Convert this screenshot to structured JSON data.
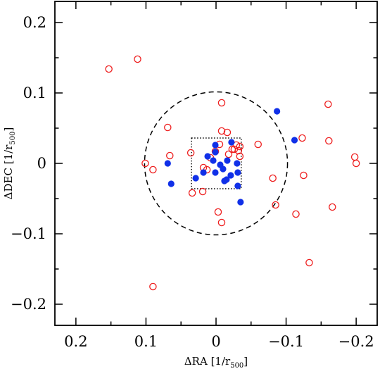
{
  "chart_data": {
    "type": "scatter",
    "xlabel": "ΔRA [1/r",
    "ylabel": "ΔDEC [1/r",
    "label_subscript": "500",
    "label_suffix": "]",
    "xlim": [
      0.23,
      -0.23
    ],
    "ylim": [
      -0.23,
      0.23
    ],
    "x_inverted": true,
    "x_ticks": [
      0.2,
      0.1,
      0,
      -0.1,
      -0.2
    ],
    "x_tick_labels": [
      "0.2",
      "0.1",
      "0",
      "−0.1",
      "−0.2"
    ],
    "y_ticks": [
      0.2,
      0.1,
      0,
      -0.1,
      -0.2
    ],
    "y_tick_labels": [
      "0.2",
      "0.1",
      "0",
      "−0.1",
      "−0.2"
    ],
    "grid": false,
    "colors": {
      "open": "#ee2020",
      "filled": "#1030e8",
      "axis": "#000000"
    },
    "circle": {
      "center": [
        0,
        0
      ],
      "radius": 0.102,
      "style": "dashed"
    },
    "box": {
      "x": [
        0.035,
        -0.036
      ],
      "y": [
        -0.036,
        0.036
      ],
      "style": "dotted"
    },
    "series": [
      {
        "marker": "open-circle",
        "points": [
          [
            0.153,
            0.134
          ],
          [
            0.112,
            0.148
          ],
          [
            0.101,
            0.0
          ],
          [
            0.09,
            -0.009
          ],
          [
            0.09,
            -0.175
          ],
          [
            0.069,
            0.051
          ],
          [
            0.066,
            0.011
          ],
          [
            0.036,
            0.015
          ],
          [
            0.034,
            -0.042
          ],
          [
            0.019,
            -0.04
          ],
          [
            0.018,
            -0.006
          ],
          [
            0.013,
            -0.009
          ],
          [
            0.008,
            0.008
          ],
          [
            -0.008,
            0.086
          ],
          [
            -0.008,
            0.046
          ],
          [
            -0.005,
            0.027
          ],
          [
            0.001,
            0.017
          ],
          [
            -0.003,
            -0.069
          ],
          [
            -0.008,
            -0.084
          ],
          [
            -0.016,
            0.044
          ],
          [
            -0.018,
            0.013
          ],
          [
            -0.023,
            0.02
          ],
          [
            -0.026,
            0.02
          ],
          [
            -0.029,
            0.026
          ],
          [
            -0.032,
            0.018
          ],
          [
            -0.034,
            0.01
          ],
          [
            -0.034,
            0.024
          ],
          [
            -0.06,
            0.027
          ],
          [
            -0.081,
            -0.021
          ],
          [
            -0.085,
            -0.059
          ],
          [
            -0.114,
            -0.072
          ],
          [
            -0.123,
            0.036
          ],
          [
            -0.125,
            -0.017
          ],
          [
            -0.133,
            -0.141
          ],
          [
            -0.16,
            0.084
          ],
          [
            -0.161,
            0.032
          ],
          [
            -0.166,
            -0.062
          ],
          [
            -0.198,
            0.009
          ],
          [
            -0.2,
            0.0
          ]
        ]
      },
      {
        "marker": "filled-circle",
        "points": [
          [
            0.069,
            0.0
          ],
          [
            0.064,
            -0.029
          ],
          [
            0.029,
            -0.021
          ],
          [
            0.018,
            -0.013
          ],
          [
            0.012,
            0.01
          ],
          [
            0.004,
            0.004
          ],
          [
            0.001,
            0.016
          ],
          [
            0.001,
            0.026
          ],
          [
            0.001,
            -0.013
          ],
          [
            -0.006,
            -0.002
          ],
          [
            -0.01,
            -0.008
          ],
          [
            -0.012,
            -0.025
          ],
          [
            -0.015,
            -0.023
          ],
          [
            -0.016,
            0.004
          ],
          [
            -0.021,
            -0.017
          ],
          [
            -0.022,
            0.03
          ],
          [
            -0.03,
            0.0
          ],
          [
            -0.031,
            -0.013
          ],
          [
            -0.031,
            -0.032
          ],
          [
            -0.035,
            -0.055
          ],
          [
            -0.087,
            0.074
          ],
          [
            -0.112,
            0.033
          ]
        ]
      }
    ]
  }
}
